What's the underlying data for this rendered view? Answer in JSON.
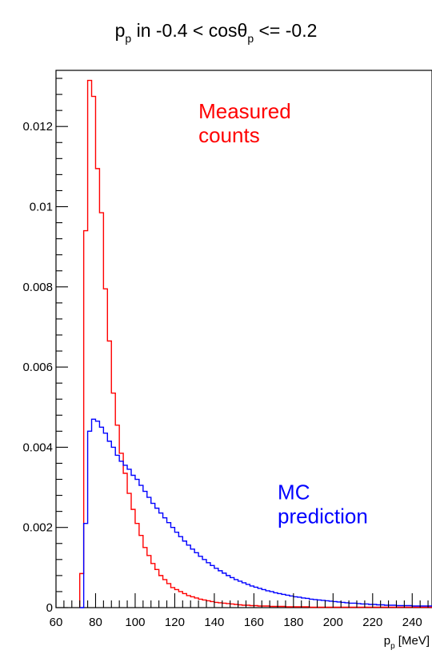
{
  "chart_data": {
    "type": "histogram",
    "title": {
      "main": "p",
      "main_sub": "p",
      "middle": " in -0.4 < cos",
      "theta": "θ",
      "theta_sub": "p",
      "tail": " <= -0.2"
    },
    "xlabel": {
      "main": "p",
      "sub": "p",
      "unit": " [MeV]"
    },
    "ylabel": "",
    "xlim": [
      60,
      250
    ],
    "ylim": [
      0,
      0.0134
    ],
    "x_ticks": [
      "60",
      "80",
      "100",
      "120",
      "140",
      "160",
      "180",
      "200",
      "220",
      "240"
    ],
    "y_ticks": [
      "0",
      "0.002",
      "0.004",
      "0.006",
      "0.008",
      "0.01",
      "0.012"
    ],
    "bin_edges": [
      72,
      74,
      76,
      78,
      80,
      82,
      84,
      86,
      88,
      90,
      92,
      94,
      96,
      98,
      100,
      102,
      104,
      106,
      108,
      110,
      112,
      114,
      116,
      118,
      120,
      122,
      124,
      126,
      128,
      130,
      132,
      134,
      136,
      138,
      140,
      142,
      144,
      146,
      148,
      150,
      152,
      154,
      156,
      158,
      160,
      162,
      164,
      166,
      168,
      170,
      172,
      174,
      176,
      178,
      180,
      182,
      184,
      186,
      188,
      190,
      192,
      194,
      196,
      198,
      200,
      202,
      204,
      206,
      208,
      210,
      212,
      214,
      216,
      218,
      220,
      222,
      224,
      226,
      228,
      230,
      232,
      234,
      236,
      238,
      240,
      242,
      244,
      246,
      248,
      250
    ],
    "series": [
      {
        "name": "Measured counts",
        "color": "#ff0000",
        "values": [
          0.00085,
          0.0094,
          0.01315,
          0.01275,
          0.01095,
          0.00985,
          0.00795,
          0.00665,
          0.00535,
          0.00455,
          0.00385,
          0.00335,
          0.00285,
          0.00245,
          0.0021,
          0.0018,
          0.0015,
          0.0013,
          0.0011,
          0.00095,
          0.0008,
          0.0007,
          0.0006,
          0.0005,
          0.00045,
          0.0004,
          0.00035,
          0.0003,
          0.00027,
          0.00024,
          0.00021,
          0.00019,
          0.00017,
          0.00015,
          0.00013,
          0.00012,
          0.00011,
          0.0001,
          9e-05,
          8e-05,
          7e-05,
          6e-05,
          6e-05,
          5e-05,
          5e-05,
          4e-05,
          4e-05,
          4e-05,
          3e-05,
          3e-05,
          3e-05,
          3e-05,
          2e-05,
          2e-05,
          2e-05,
          2e-05,
          2e-05,
          2e-05,
          1e-05,
          1e-05,
          1e-05,
          1e-05,
          1e-05,
          1e-05,
          1e-05,
          1e-05,
          1e-05,
          1e-05,
          1e-05,
          1e-05,
          1e-05,
          1e-05,
          1e-05,
          1e-05,
          1e-05,
          1e-05,
          1e-05,
          1e-05,
          1e-05,
          1e-05,
          1e-05,
          1e-05,
          1e-05,
          1e-05,
          1e-05,
          1e-05,
          1e-05,
          1e-05,
          1e-05
        ]
      },
      {
        "name": "MC prediction",
        "color": "#0000ff",
        "values": [
          0,
          0.0021,
          0.0044,
          0.0047,
          0.00465,
          0.0045,
          0.00435,
          0.00415,
          0.004,
          0.0038,
          0.00365,
          0.00355,
          0.00345,
          0.0033,
          0.0032,
          0.00305,
          0.0029,
          0.00275,
          0.0026,
          0.00248,
          0.00236,
          0.00224,
          0.00212,
          0.002,
          0.00188,
          0.00177,
          0.00166,
          0.00156,
          0.00146,
          0.00137,
          0.00128,
          0.0012,
          0.00112,
          0.00105,
          0.00098,
          0.00092,
          0.00086,
          0.0008,
          0.00075,
          0.0007,
          0.00066,
          0.00062,
          0.00058,
          0.00054,
          0.00051,
          0.00048,
          0.00045,
          0.00042,
          0.0004,
          0.00037,
          0.00035,
          0.00033,
          0.00031,
          0.00029,
          0.00027,
          0.00026,
          0.00024,
          0.00023,
          0.00021,
          0.0002,
          0.00019,
          0.00018,
          0.00017,
          0.00016,
          0.00015,
          0.00014,
          0.00013,
          0.00012,
          0.00011,
          0.00011,
          0.0001,
          9e-05,
          9e-05,
          8e-05,
          8e-05,
          7e-05,
          7e-05,
          6e-05,
          6e-05,
          6e-05,
          5e-05,
          5e-05,
          5e-05,
          5e-05,
          4e-05,
          4e-05,
          4e-05,
          4e-05,
          4e-05
        ]
      }
    ],
    "annotations": [
      {
        "lines": [
          "Measured",
          "counts"
        ],
        "color": "#ff0000",
        "x": 132,
        "y": 0.0122
      },
      {
        "lines": [
          "MC",
          "prediction"
        ],
        "color": "#0000ff",
        "x": 172,
        "y": 0.0027
      }
    ],
    "grid": false,
    "legend": "none"
  }
}
